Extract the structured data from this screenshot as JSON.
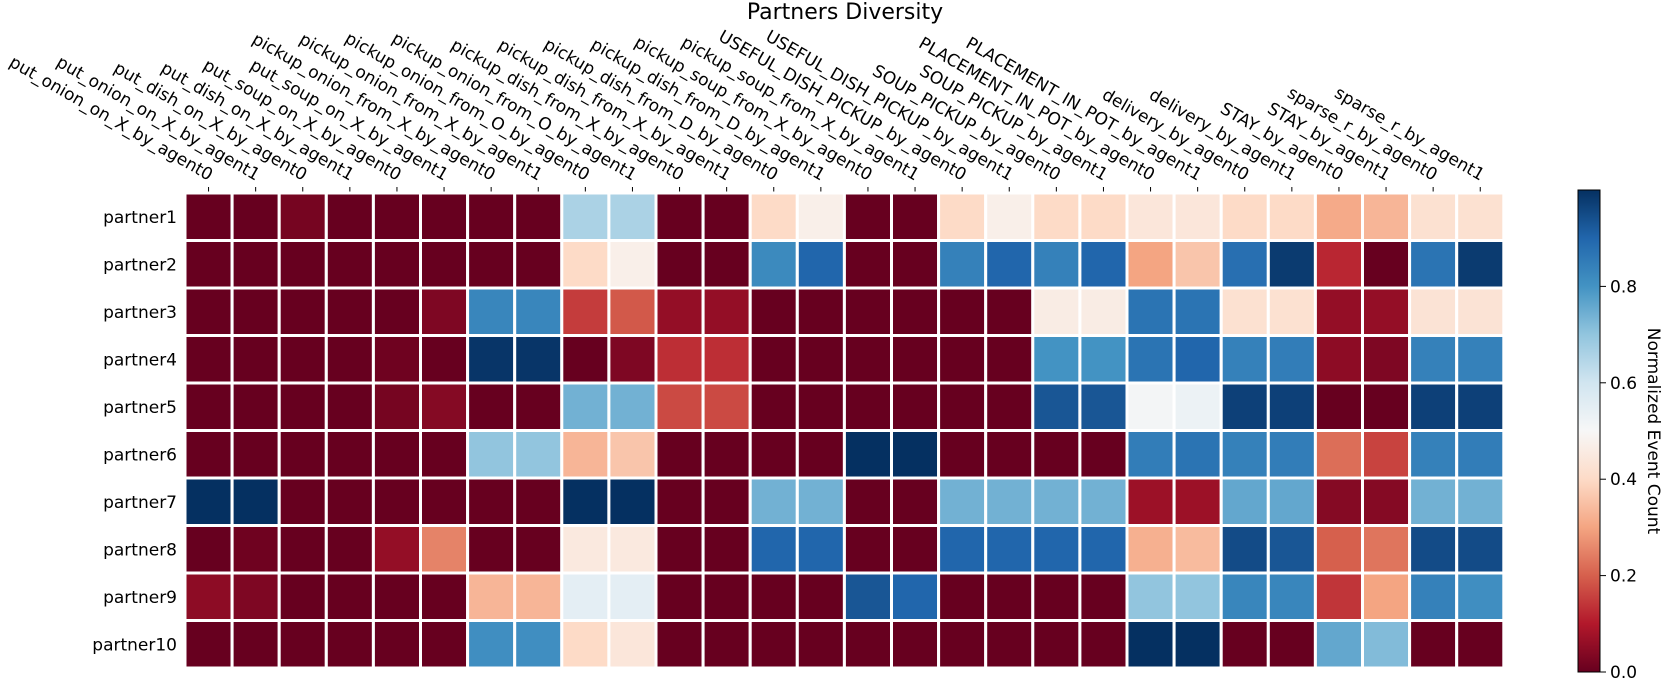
{
  "chart_data": {
    "type": "heatmap",
    "title": "Partners Diversity",
    "columns": [
      "put_onion_on_X_by_agent0",
      "put_onion_on_X_by_agent1",
      "put_dish_on_X_by_agent0",
      "put_dish_on_X_by_agent1",
      "put_soup_on_X_by_agent0",
      "put_soup_on_X_by_agent1",
      "pickup_onion_from_X_by_agent0",
      "pickup_onion_from_X_by_agent1",
      "pickup_onion_from_O_by_agent0",
      "pickup_onion_from_O_by_agent1",
      "pickup_dish_from_X_by_agent0",
      "pickup_dish_from_X_by_agent1",
      "pickup_dish_from_D_by_agent0",
      "pickup_dish_from_D_by_agent1",
      "pickup_soup_from_X_by_agent0",
      "pickup_soup_from_X_by_agent1",
      "USEFUL_DISH_PICKUP_by_agent0",
      "USEFUL_DISH_PICKUP_by_agent1",
      "SOUP_PICKUP_by_agent0",
      "SOUP_PICKUP_by_agent1",
      "PLACEMENT_IN_POT_by_agent0",
      "PLACEMENT_IN_POT_by_agent1",
      "delivery_by_agent0",
      "delivery_by_agent1",
      "STAY_by_agent0",
      "STAY_by_agent1",
      "sparse_r_by_agent0",
      "sparse_r_by_agent1"
    ],
    "rows": [
      "partner1",
      "partner2",
      "partner3",
      "partner4",
      "partner5",
      "partner6",
      "partner7",
      "partner8",
      "partner9",
      "partner10"
    ],
    "values": [
      [
        0.0,
        0.0,
        0.02,
        0.0,
        0.0,
        0.0,
        0.0,
        0.0,
        0.66,
        0.66,
        0.0,
        0.0,
        0.4,
        0.47,
        0.0,
        0.0,
        0.4,
        0.47,
        0.4,
        0.4,
        0.44,
        0.44,
        0.4,
        0.4,
        0.31,
        0.33,
        0.42,
        0.42
      ],
      [
        0.0,
        0.0,
        0.0,
        0.0,
        0.0,
        0.0,
        0.0,
        0.0,
        0.4,
        0.47,
        0.0,
        0.0,
        0.82,
        0.9,
        0.0,
        0.0,
        0.84,
        0.9,
        0.84,
        0.9,
        0.3,
        0.36,
        0.88,
        0.98,
        0.12,
        0.0,
        0.87,
        0.98
      ],
      [
        0.0,
        0.0,
        0.0,
        0.0,
        0.0,
        0.03,
        0.83,
        0.83,
        0.15,
        0.19,
        0.06,
        0.06,
        0.0,
        0.0,
        0.0,
        0.0,
        0.0,
        0.0,
        0.46,
        0.46,
        0.87,
        0.87,
        0.42,
        0.42,
        0.06,
        0.06,
        0.43,
        0.43
      ],
      [
        0.0,
        0.0,
        0.0,
        0.0,
        0.01,
        0.0,
        0.99,
        0.99,
        0.0,
        0.03,
        0.13,
        0.13,
        0.0,
        0.0,
        0.0,
        0.0,
        0.0,
        0.0,
        0.8,
        0.8,
        0.87,
        0.9,
        0.84,
        0.85,
        0.05,
        0.03,
        0.84,
        0.84
      ],
      [
        0.0,
        0.0,
        0.0,
        0.0,
        0.02,
        0.04,
        0.0,
        0.0,
        0.74,
        0.74,
        0.17,
        0.17,
        0.0,
        0.0,
        0.0,
        0.0,
        0.0,
        0.0,
        0.93,
        0.93,
        0.51,
        0.53,
        0.97,
        0.97,
        0.0,
        0.0,
        0.97,
        0.97
      ],
      [
        0.0,
        0.0,
        0.0,
        0.0,
        0.0,
        0.0,
        0.7,
        0.7,
        0.33,
        0.36,
        0.0,
        0.0,
        0.0,
        0.0,
        1.0,
        1.0,
        0.0,
        0.0,
        0.0,
        0.0,
        0.85,
        0.87,
        0.84,
        0.85,
        0.22,
        0.16,
        0.84,
        0.85
      ],
      [
        1.0,
        1.0,
        0.0,
        0.0,
        0.0,
        0.0,
        0.0,
        0.0,
        1.0,
        1.0,
        0.0,
        0.0,
        0.74,
        0.74,
        0.0,
        0.0,
        0.74,
        0.74,
        0.74,
        0.74,
        0.07,
        0.07,
        0.76,
        0.76,
        0.04,
        0.04,
        0.74,
        0.74
      ],
      [
        0.0,
        0.01,
        0.0,
        0.0,
        0.06,
        0.25,
        0.0,
        0.0,
        0.45,
        0.45,
        0.0,
        0.0,
        0.9,
        0.9,
        0.0,
        0.0,
        0.9,
        0.9,
        0.9,
        0.9,
        0.32,
        0.34,
        0.95,
        0.93,
        0.2,
        0.23,
        0.95,
        0.95
      ],
      [
        0.05,
        0.03,
        0.0,
        0.0,
        0.0,
        0.0,
        0.33,
        0.33,
        0.55,
        0.55,
        0.0,
        0.0,
        0.0,
        0.0,
        0.93,
        0.9,
        0.0,
        0.0,
        0.0,
        0.0,
        0.7,
        0.7,
        0.83,
        0.83,
        0.14,
        0.3,
        0.84,
        0.81
      ],
      [
        0.0,
        0.0,
        0.0,
        0.0,
        0.0,
        0.0,
        0.81,
        0.81,
        0.4,
        0.44,
        0.0,
        0.0,
        0.0,
        0.0,
        0.0,
        0.0,
        0.0,
        0.0,
        0.0,
        0.0,
        1.0,
        1.0,
        0.0,
        0.0,
        0.76,
        0.72,
        0.0,
        0.0
      ]
    ],
    "colormap": "RdBu",
    "colormap_stops": [
      "#67001f",
      "#b2182b",
      "#d6604d",
      "#f4a582",
      "#fddbc7",
      "#f7f7f7",
      "#d1e5f0",
      "#92c5de",
      "#4393c3",
      "#2166ac",
      "#053061"
    ],
    "vmin": 0.0,
    "vmax": 1.0,
    "colorbar_label": "Normalized Event Count",
    "colorbar_ticks": [
      "0.0",
      "0.2",
      "0.4",
      "0.6",
      "0.8"
    ],
    "colorbar_tick_values": [
      0.0,
      0.2,
      0.4,
      0.6,
      0.8
    ],
    "grid_line_color": "#ffffff"
  }
}
